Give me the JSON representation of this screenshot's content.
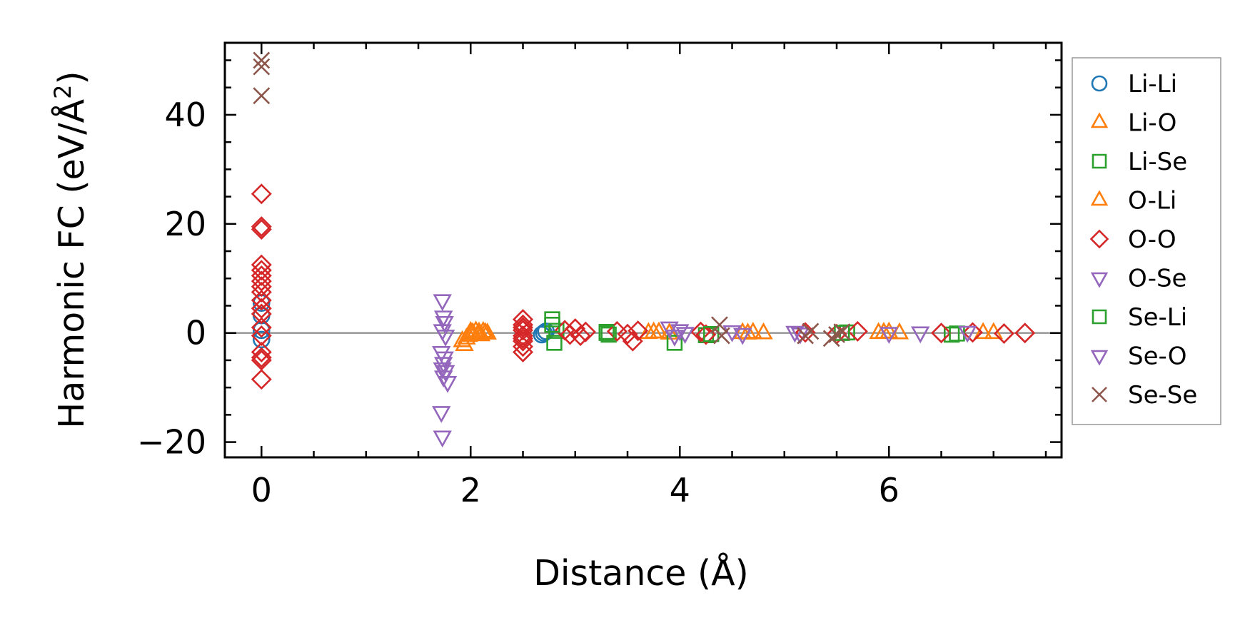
{
  "chart_data": {
    "type": "scatter",
    "title": "",
    "xlabel": "Distance (Å)",
    "ylabel_main": "Harmonic FC (eV/Å",
    "ylabel_sup": "2",
    "ylabel_close": ")",
    "xlim": [
      -0.35,
      7.65
    ],
    "ylim": [
      -22.8,
      53.2
    ],
    "xticks": [
      0,
      2,
      4,
      6
    ],
    "xtick_labels": [
      "0",
      "2",
      "4",
      "6"
    ],
    "yticks": [
      -20,
      0,
      20,
      40
    ],
    "ytick_labels": [
      "−20",
      "0",
      "20",
      "40"
    ],
    "zero_line": true,
    "grid": false,
    "legend_position": "outside-right",
    "series": [
      {
        "name": "Li-Li",
        "marker": "circle",
        "color": "#1f77b4",
        "x": [
          0,
          0,
          0,
          0,
          2.7,
          2.68,
          2.72
        ],
        "y": [
          5.5,
          3.2,
          0.5,
          -1.2,
          0.0,
          -0.3,
          0.3
        ]
      },
      {
        "name": "Li-O",
        "marker": "triangle-up",
        "color": "#ff7f0e",
        "x": [
          1.94,
          1.96,
          1.98,
          2.0,
          2.02,
          2.05,
          2.08,
          2.1,
          2.12,
          2.14,
          2.16,
          3.7,
          3.8,
          3.9,
          4.6,
          4.7,
          4.8,
          5.9,
          6.0,
          6.1,
          6.9
        ],
        "y": [
          -2.2,
          -1.0,
          -0.5,
          -0.2,
          0.0,
          0.3,
          0.1,
          -0.4,
          0.2,
          0.0,
          -0.1,
          0.0,
          0.1,
          -0.1,
          0.0,
          0.05,
          -0.05,
          0.0,
          0.1,
          -0.05,
          0.0
        ]
      },
      {
        "name": "Li-Se",
        "marker": "square",
        "color": "#2ca02c",
        "x": [
          2.78,
          2.8,
          2.82,
          3.3,
          3.32,
          3.95,
          4.25,
          5.6,
          6.6
        ],
        "y": [
          2.5,
          -1.8,
          0.4,
          0.2,
          -0.3,
          -1.8,
          -0.4,
          0.1,
          -0.3
        ]
      },
      {
        "name": "O-Li",
        "marker": "triangle-up",
        "color": "#ff7f0e",
        "x": [
          1.92,
          2.0,
          2.08,
          3.75,
          4.65,
          5.95,
          7.0
        ],
        "y": [
          -1.5,
          0.2,
          -0.3,
          0.1,
          -0.1,
          0.05,
          0.0
        ]
      },
      {
        "name": "O-O",
        "marker": "diamond",
        "color": "#d62728",
        "x": [
          0,
          0,
          0,
          0,
          0,
          0,
          0,
          0,
          0,
          0,
          0,
          0,
          0,
          0,
          0,
          0,
          0,
          0,
          2.5,
          2.5,
          2.5,
          2.5,
          2.5,
          2.5,
          2.5,
          2.5,
          2.5,
          2.9,
          2.95,
          3.0,
          3.05,
          3.1,
          3.4,
          3.5,
          3.6,
          3.55,
          4.2,
          4.25,
          5.2,
          5.5,
          5.7,
          6.5,
          6.8,
          7.1,
          7.3
        ],
        "y": [
          25.5,
          19.5,
          19.0,
          12.5,
          11.5,
          10.5,
          9.5,
          8.5,
          7.5,
          6.0,
          4.5,
          3.5,
          1.0,
          -0.5,
          -3.5,
          -4.5,
          -5.0,
          -8.5,
          2.5,
          1.5,
          0.5,
          -0.5,
          -1.5,
          -2.5,
          -3.5,
          1.0,
          -1.0,
          0.5,
          -0.3,
          0.8,
          -0.5,
          0.2,
          0.3,
          -0.2,
          0.4,
          -1.5,
          0.2,
          -0.3,
          0.1,
          -0.2,
          0.3,
          0.0,
          0.1,
          -0.1,
          0.0
        ]
      },
      {
        "name": "O-Se",
        "marker": "triangle-down",
        "color": "#9467bd",
        "x": [
          1.73,
          1.74,
          1.75,
          1.73,
          1.76,
          1.72,
          1.75,
          1.74,
          1.73,
          1.76,
          1.74,
          1.78,
          1.72,
          1.73
        ],
        "y": [
          6.0,
          3.0,
          2.0,
          0.5,
          -0.5,
          -3.5,
          -4.5,
          -5.5,
          -6.5,
          -7.0,
          -8.0,
          -9.0,
          -14.5,
          -19.0
        ]
      },
      {
        "name": "Se-Li",
        "marker": "square",
        "color": "#2ca02c",
        "x": [
          2.78,
          3.3,
          4.3,
          5.55,
          6.65
        ],
        "y": [
          1.5,
          0.0,
          -0.2,
          0.0,
          -0.1
        ]
      },
      {
        "name": "Se-O",
        "marker": "triangle-down",
        "color": "#9467bd",
        "x": [
          3.9,
          3.95,
          4.0,
          4.05,
          4.5,
          4.6,
          5.1,
          5.15,
          6.0,
          6.3,
          6.75
        ],
        "y": [
          1.0,
          -0.5,
          0.5,
          0.0,
          0.3,
          -0.2,
          0.2,
          -0.1,
          0.0,
          0.1,
          0.2
        ]
      },
      {
        "name": "Se-Se",
        "marker": "x",
        "color": "#8c564b",
        "x": [
          0,
          0,
          0,
          4.38,
          4.4,
          5.2,
          5.25,
          5.45,
          5.5,
          5.55
        ],
        "y": [
          50.0,
          48.8,
          43.5,
          1.5,
          -0.5,
          -0.5,
          0.3,
          -1.0,
          -0.3,
          0.2
        ]
      }
    ]
  }
}
